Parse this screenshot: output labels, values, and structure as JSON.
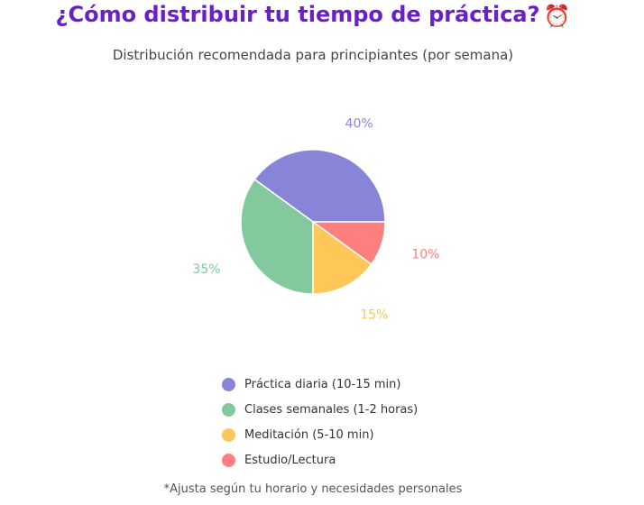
{
  "header": {
    "title": "¿Cómo distribuir tu tiempo de práctica?",
    "title_emoji": "⏰"
  },
  "footnote": "*Ajusta según tu horario y necesidades personales",
  "chart_data": {
    "type": "pie",
    "title": "",
    "subtitle": "Distribución recomendada para principiantes (por semana)",
    "legend_position": "bottom",
    "slices": [
      {
        "label": "Práctica diaria (10-15 min)",
        "value": 40,
        "display": "40%",
        "color": "#8884d8"
      },
      {
        "label": "Clases semanales (1-2 horas)",
        "value": 35,
        "display": "35%",
        "color": "#82ca9d"
      },
      {
        "label": "Meditación (5-10 min)",
        "value": 15,
        "display": "15%",
        "color": "#ffc658"
      },
      {
        "label": "Estudio/Lectura",
        "value": 10,
        "display": "10%",
        "color": "#ff7f7f"
      }
    ]
  }
}
